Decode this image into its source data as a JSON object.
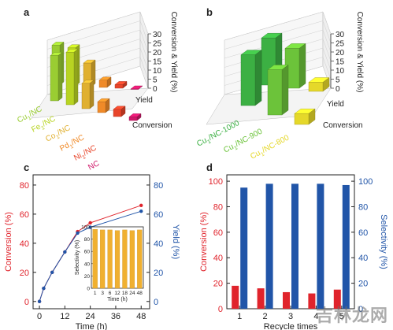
{
  "watermark": "吉林龙网",
  "chart_data": [
    {
      "panel": "a",
      "type": "bar",
      "projection": "3d",
      "categories": [
        "Cu1/NC",
        "Fe1/NC",
        "Co1/NC",
        "Pd1/NC",
        "Ni1/NC",
        "NC"
      ],
      "series": [
        {
          "name": "Yield",
          "values": [
            22,
            21,
            13,
            4,
            2,
            0
          ]
        },
        {
          "name": "Conversion",
          "values": [
            25,
            29,
            14,
            6,
            4,
            2
          ]
        }
      ],
      "zlabel": "Conversion & Yield (%)",
      "zticks": [
        0,
        5,
        10,
        15,
        20,
        25,
        30
      ],
      "zlim": [
        0,
        30
      ],
      "colors": [
        "#9acd32",
        "#b8d422",
        "#e0b030",
        "#f08a28",
        "#e8452a",
        "#d0186a"
      ]
    },
    {
      "panel": "b",
      "type": "bar",
      "projection": "3d",
      "categories": [
        "Cu1/NC-1000",
        "Cu1/NC-900",
        "Cu1/NC-800"
      ],
      "series": [
        {
          "name": "Yield",
          "values": [
            26,
            22,
            5
          ]
        },
        {
          "name": "Conversion",
          "values": [
            28,
            25,
            6
          ]
        }
      ],
      "zlabel": "Conversion & Yield (%)",
      "zticks": [
        0,
        5,
        10,
        15,
        20,
        25,
        30
      ],
      "zlim": [
        0,
        30
      ],
      "colors": [
        "#3cb043",
        "#6cc33a",
        "#e5d82a"
      ]
    },
    {
      "panel": "c",
      "type": "line",
      "x": [
        0,
        2,
        6,
        12,
        18,
        24,
        48
      ],
      "xticks": [
        0,
        12,
        24,
        36,
        48
      ],
      "xlabel": "Time (h)",
      "xlim": [
        -3,
        52
      ],
      "series": [
        {
          "name": "Conversion (%)",
          "axis": "left",
          "color": "#e0242c",
          "values": [
            0,
            9,
            20,
            34,
            48,
            54,
            66
          ]
        },
        {
          "name": "Yield (%)",
          "axis": "right",
          "color": "#2155a8",
          "values": [
            0,
            9,
            20,
            34,
            47,
            51,
            62
          ]
        }
      ],
      "ylabel_left": "Conversion (%)",
      "ylabel_right": "Yield (%)",
      "yticks": [
        0,
        20,
        40,
        60,
        80
      ],
      "ylim": [
        -5,
        87
      ],
      "inset": {
        "type": "bar",
        "categories": [
          "1",
          "3",
          "6",
          "12",
          "18",
          "24",
          "48"
        ],
        "values": [
          96,
          95,
          95,
          94,
          95,
          94,
          95
        ],
        "ylabel": "Selectivity (%)",
        "xlabel": "Time (h)",
        "yticks": [
          0,
          20,
          40,
          60,
          80,
          100
        ],
        "ylim": [
          0,
          100
        ],
        "color": "#f0b030"
      }
    },
    {
      "panel": "d",
      "type": "bar",
      "categories": [
        "1",
        "2",
        "3",
        "4",
        "5"
      ],
      "series": [
        {
          "name": "Conversion (%)",
          "axis": "left",
          "color": "#e0242c",
          "values": [
            18,
            16,
            13,
            12,
            15
          ]
        },
        {
          "name": "Selectivity (%)",
          "axis": "right",
          "color": "#2155a8",
          "values": [
            95,
            98,
            98,
            98,
            97
          ]
        }
      ],
      "xlabel": "Recycle times",
      "ylabel_left": "Conversion (%)",
      "ylabel_right": "Selectivity (%)",
      "yticks": [
        0,
        20,
        40,
        60,
        80,
        100
      ],
      "ylim": [
        0,
        105
      ]
    }
  ]
}
